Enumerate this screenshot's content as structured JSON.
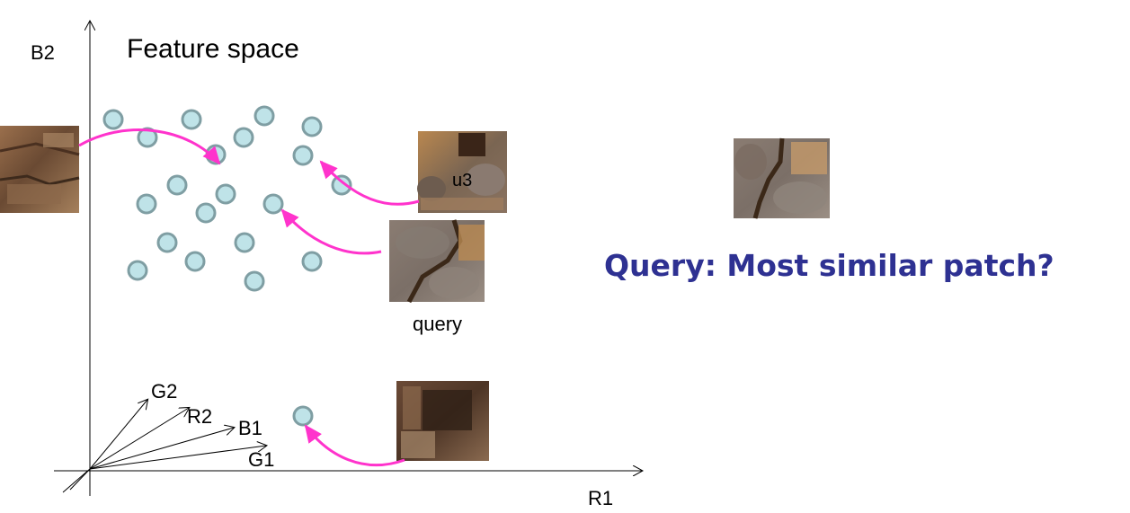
{
  "diagram": {
    "title": "Feature space",
    "axis_y_label": "B2",
    "axis_x_label": "R1",
    "basis_labels": [
      "G2",
      "R2",
      "B1",
      "G1"
    ],
    "patch_labels": {
      "u3": "u3",
      "query": "query"
    },
    "heading": "Query:  Most similar patch?",
    "colors": {
      "point_fill": "#bfe3e8",
      "point_stroke": "#7f9ea3",
      "arrow": "#ff33cc",
      "heading": "#2e3192"
    }
  }
}
